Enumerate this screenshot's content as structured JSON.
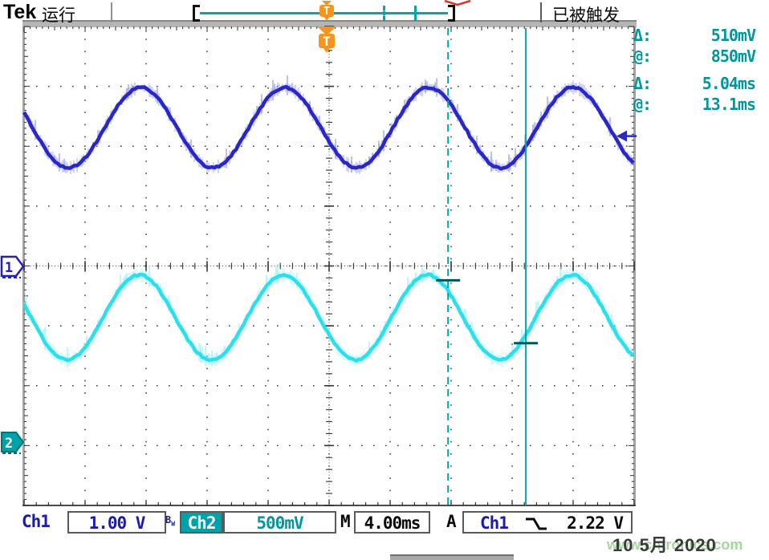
{
  "window": {
    "brand": "Tek",
    "acq_status": "运行",
    "trigger_status": "已被触发"
  },
  "measure_readouts": [
    {
      "label": "Δ:",
      "value": "510mV"
    },
    {
      "label": "@:",
      "value": "850mV"
    },
    {
      "label": "Δ:",
      "value": "5.04ms"
    },
    {
      "label": "@:",
      "value": "13.1ms"
    }
  ],
  "status_bar": {
    "ch1_label": "Ch1",
    "ch1_scale": "1.00 V",
    "bw_b": "B",
    "bw_w": "W",
    "ch2_label": "Ch2",
    "ch2_scale": "500mV",
    "horizontal_label": "M",
    "horizontal_scale": "4.00ms",
    "trigger_label": "A",
    "trigger_source": "Ch1",
    "trigger_level": "2.22 V"
  },
  "markers": {
    "ch1_badge": "1",
    "ch2_badge": "2",
    "trigger_flag": "T"
  },
  "footer": {
    "date": "10 5月 2020",
    "watermark": "www.cntronics.com"
  },
  "colors": {
    "ch1_trace": "#2121c8",
    "ch1_halo": "#9b9bf0",
    "ch2_trace": "#22dfee",
    "ch2_halo": "#9df3f9",
    "teal_ui": "#00a2aa",
    "orange_trigger": "#f7941d",
    "watermark_green": "#a5d69e",
    "readout_teal": "#00979f"
  },
  "chart_data": {
    "type": "line",
    "title": "oscilloscope dual-channel sine traces",
    "x_axis": {
      "units": "ms",
      "per_div": 4,
      "divisions": 10,
      "range_ms": [
        0,
        40
      ],
      "grid": "dotted"
    },
    "y_axis": {
      "divisions": 8
    },
    "series": [
      {
        "name": "Ch1",
        "volts_per_div": "1.00 V",
        "zero_div_from_center": 0,
        "offset_div_from_center": 2.31,
        "amplitude_div": 0.67,
        "period_ms": 9.45,
        "peak_at_ms": 7.65,
        "color": "#2121c8",
        "halo_color": "#9b9bf0"
      },
      {
        "name": "Ch2",
        "volts_per_div": "500 mV",
        "zero_div_from_center": -2.94,
        "offset_div_from_center": -0.86,
        "amplitude_div": 0.71,
        "period_ms": 9.45,
        "peak_at_ms": 7.55,
        "color": "#22dfee",
        "halo_color": "#9df3f9"
      }
    ],
    "cursors": {
      "type": "time",
      "v1_ms": 27.8,
      "v2_ms": 32.9,
      "delta_v": "510mV",
      "at_v": "850mV",
      "delta_t": "5.04ms",
      "at_t": "13.1ms",
      "mark1_div_from_center": -0.24,
      "mark2_div_from_center": -1.29
    },
    "trigger": {
      "source": "Ch1",
      "level_v": 2.22,
      "level_div_from_center": 2.17,
      "position_ms": 19.8,
      "slope": "falling"
    }
  }
}
